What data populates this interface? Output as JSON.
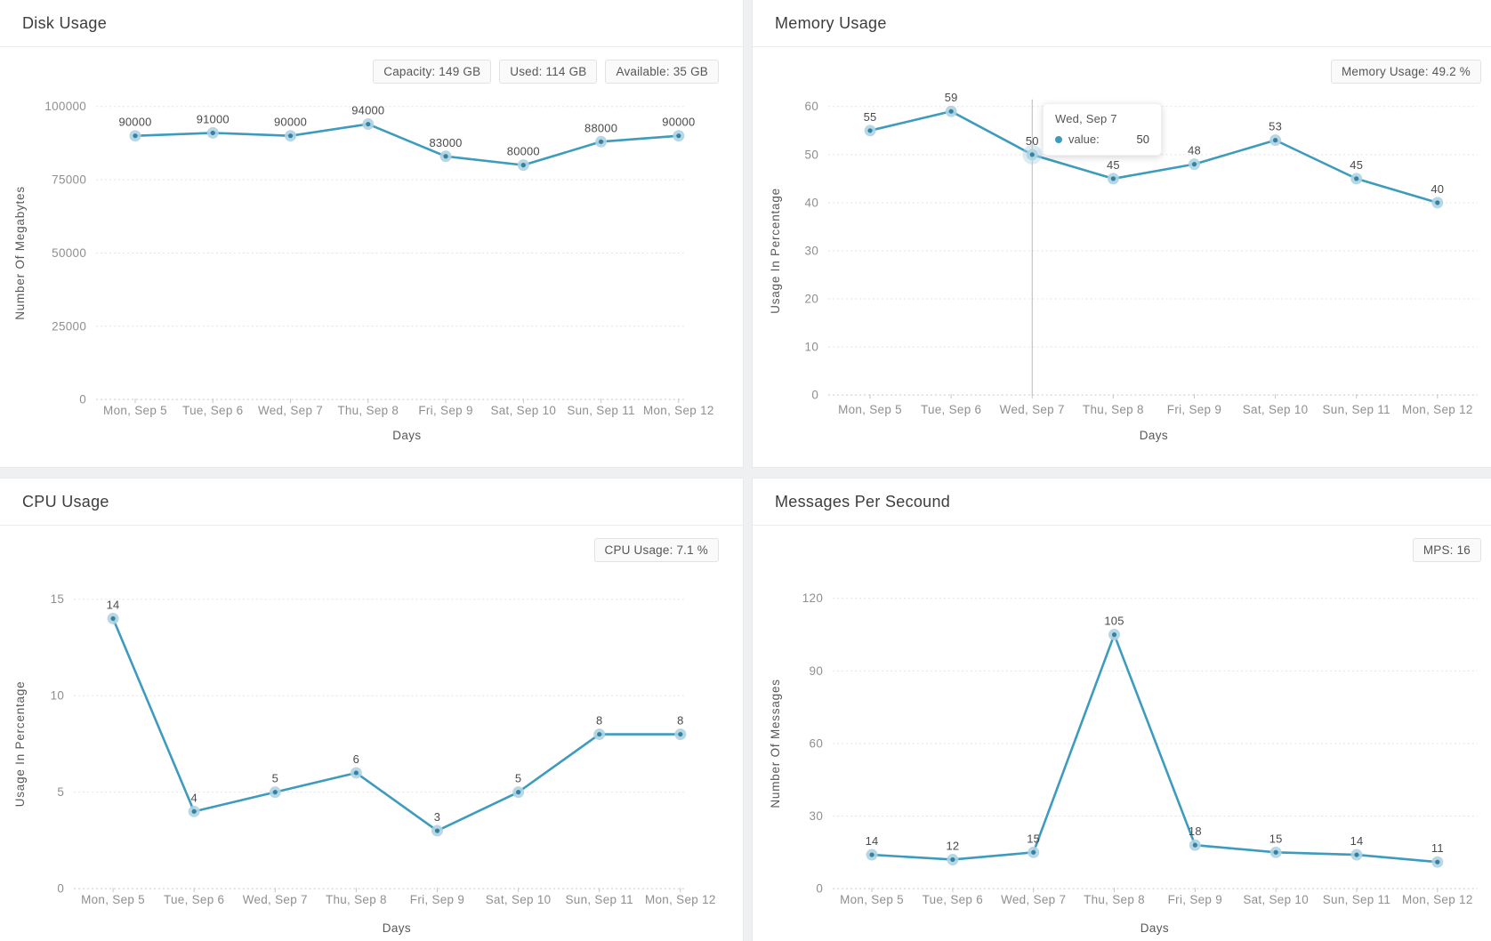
{
  "page": {
    "background_color": "#eef0f2",
    "accent_color": "#3d9bbd"
  },
  "chart_data": [
    {
      "id": "disk-usage",
      "type": "line",
      "title": "Disk Usage",
      "badges": [
        "Capacity: 149 GB",
        "Used: 114 GB",
        "Available: 35 GB"
      ],
      "categories": [
        "Mon, Sep 5",
        "Tue, Sep 6",
        "Wed, Sep 7",
        "Thu, Sep 8",
        "Fri, Sep 9",
        "Sat, Sep 10",
        "Sun, Sep 11",
        "Mon, Sep 12"
      ],
      "values": [
        90000,
        91000,
        90000,
        94000,
        83000,
        80000,
        88000,
        90000
      ],
      "xlabel": "Days",
      "ylabel": "Number Of Megabytes",
      "ylim": [
        0,
        100000
      ],
      "ytick_step": 25000,
      "ytick_labels": [
        "0",
        "25000",
        "50000",
        "75000",
        "100000"
      ],
      "grid": true,
      "legend_position": "none",
      "line_color": "#3d9bbd"
    },
    {
      "id": "memory-usage",
      "type": "line",
      "title": "Memory Usage",
      "badges": [
        "Memory Usage: 49.2 %"
      ],
      "categories": [
        "Mon, Sep 5",
        "Tue, Sep 6",
        "Wed, Sep 7",
        "Thu, Sep 8",
        "Fri, Sep 9",
        "Sat, Sep 10",
        "Sun, Sep 11",
        "Mon, Sep 12"
      ],
      "values": [
        55,
        59,
        50,
        45,
        48,
        53,
        45,
        40
      ],
      "xlabel": "Days",
      "ylabel": "Usage In Percentage",
      "ylim": [
        0,
        60
      ],
      "ytick_step": 10,
      "ytick_labels": [
        "0",
        "10",
        "20",
        "30",
        "40",
        "50",
        "60"
      ],
      "grid": true,
      "legend_position": "none",
      "line_color": "#3d9bbd",
      "tooltip": {
        "title": "Wed, Sep 7",
        "series_label": "value:",
        "value": "50",
        "point_index": 2
      }
    },
    {
      "id": "cpu-usage",
      "type": "line",
      "title": "CPU Usage",
      "badges": [
        "CPU Usage: 7.1 %"
      ],
      "categories": [
        "Mon, Sep 5",
        "Tue, Sep 6",
        "Wed, Sep 7",
        "Thu, Sep 8",
        "Fri, Sep 9",
        "Sat, Sep 10",
        "Sun, Sep 11",
        "Mon, Sep 12"
      ],
      "values": [
        14,
        4,
        5,
        6,
        3,
        5,
        8,
        8
      ],
      "xlabel": "Days",
      "ylabel": "Usage In Percentage",
      "ylim": [
        0,
        15
      ],
      "ytick_step": 5,
      "ytick_labels": [
        "0",
        "5",
        "10",
        "15"
      ],
      "grid": true,
      "legend_position": "none",
      "line_color": "#3d9bbd"
    },
    {
      "id": "messages-per-second",
      "type": "line",
      "title": "Messages Per Secound",
      "badges": [
        "MPS: 16"
      ],
      "categories": [
        "Mon, Sep 5",
        "Tue, Sep 6",
        "Wed, Sep 7",
        "Thu, Sep 8",
        "Fri, Sep 9",
        "Sat, Sep 10",
        "Sun, Sep 11",
        "Mon, Sep 12"
      ],
      "values": [
        14,
        12,
        15,
        105,
        18,
        15,
        14,
        11
      ],
      "xlabel": "Days",
      "ylabel": "Number Of Messages",
      "ylim": [
        0,
        120
      ],
      "ytick_step": 30,
      "ytick_labels": [
        "0",
        "30",
        "60",
        "90",
        "120"
      ],
      "grid": true,
      "legend_position": "none",
      "line_color": "#3d9bbd"
    }
  ]
}
